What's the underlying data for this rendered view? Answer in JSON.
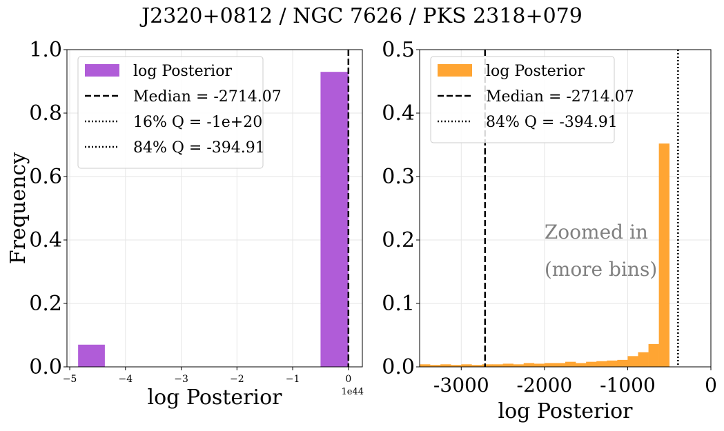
{
  "figure_title": "J2320+0812 / NGC 7626 / PKS 2318+079",
  "colors": {
    "left_bars": "#b05cd8",
    "right_bars": "#ffa533",
    "annotation_text": "#808080"
  },
  "chart_data": [
    {
      "type": "bar",
      "title": "",
      "xlabel": "log Posterior",
      "ylabel": "Frequency",
      "x_offset_label": "1e44",
      "xlim": [
        -5.05,
        0.25
      ],
      "ylim": [
        0,
        1.0
      ],
      "grid": true,
      "legend_placement": "upper-left",
      "x_ticks": [
        -5,
        -4,
        -3,
        -2,
        -1,
        0
      ],
      "x_tick_labels": [
        "−5",
        "−4",
        "−3",
        "−2",
        "−1",
        "0"
      ],
      "y_ticks": [
        0,
        0.2,
        0.4,
        0.6,
        0.8,
        1.0
      ],
      "y_tick_labels": [
        "0.0",
        "0.2",
        "0.4",
        "0.6",
        "0.8",
        "1.0"
      ],
      "bins": [
        {
          "x0": -4.85,
          "x1": -4.37,
          "value": 0.07
        },
        {
          "x0": -0.5,
          "x1": 0.0,
          "value": 0.93
        }
      ],
      "vlines": [
        {
          "label": "Median = -2714.07",
          "x": 0,
          "style": "dashed"
        }
      ],
      "legend": [
        {
          "label": "log Posterior",
          "kind": "patch"
        },
        {
          "label": "Median = -2714.07",
          "kind": "dashed"
        },
        {
          "label": "16% Q = -1e+20",
          "kind": "dotted"
        },
        {
          "label": "84% Q = -394.91",
          "kind": "dotted"
        }
      ]
    },
    {
      "type": "bar",
      "title": "",
      "xlabel": "log Posterior",
      "ylabel": "",
      "xlim": [
        -3500,
        0
      ],
      "ylim": [
        0,
        0.5
      ],
      "grid": true,
      "legend_placement": "upper-left",
      "x_ticks": [
        -3000,
        -2000,
        -1000,
        0
      ],
      "x_tick_labels": [
        "-3000",
        "-2000",
        "-1000",
        "0"
      ],
      "y_ticks": [
        0,
        0.1,
        0.2,
        0.3,
        0.4,
        0.5
      ],
      "y_tick_labels": [
        "0.0",
        "0.1",
        "0.2",
        "0.3",
        "0.4",
        "0.5"
      ],
      "bin_edges": [
        -3500,
        -3375,
        -3250,
        -3125,
        -3000,
        -2875,
        -2750,
        -2625,
        -2500,
        -2375,
        -2250,
        -2125,
        -2000,
        -1875,
        -1750,
        -1625,
        -1500,
        -1375,
        -1250,
        -1125,
        -1000,
        -875,
        -750,
        -625,
        -500,
        -375
      ],
      "values": [
        0.004,
        0.003,
        0.004,
        0.003,
        0.004,
        0.003,
        0.004,
        0.004,
        0.005,
        0.004,
        0.006,
        0.005,
        0.006,
        0.006,
        0.008,
        0.006,
        0.008,
        0.009,
        0.01,
        0.011,
        0.017,
        0.023,
        0.036,
        0.352,
        0.0
      ],
      "vlines": [
        {
          "label": "Median = -2714.07",
          "x": -2714.07,
          "style": "dashed"
        },
        {
          "label": "84% Q = -394.91",
          "x": -394.91,
          "style": "dotted"
        }
      ],
      "annotation": [
        "Zoomed in",
        "(more bins)"
      ],
      "annotation_pos": {
        "x": -2000,
        "y1": 0.2,
        "y2": 0.15
      },
      "legend": [
        {
          "label": "log Posterior",
          "kind": "patch"
        },
        {
          "label": "Median = -2714.07",
          "kind": "dashed"
        },
        {
          "label": "84% Q = -394.91",
          "kind": "dotted"
        }
      ]
    }
  ]
}
